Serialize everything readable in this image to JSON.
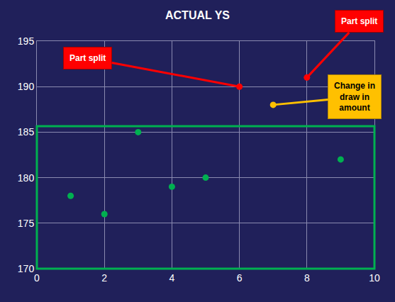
{
  "chart_data": {
    "type": "scatter",
    "title": "ACTUAL YS",
    "x": [
      1,
      2,
      3,
      4,
      5,
      6,
      7,
      8,
      9
    ],
    "values": [
      178,
      176,
      185,
      179,
      180,
      190,
      188,
      191,
      182
    ],
    "colors": [
      "#00b050",
      "#00b050",
      "#00b050",
      "#00b050",
      "#00b050",
      "#ff0000",
      "#ffc000",
      "#ff0000",
      "#00b050"
    ],
    "xlim": [
      0,
      10
    ],
    "xticks": [
      0,
      2,
      4,
      6,
      8,
      10
    ],
    "ylim": [
      170,
      195
    ],
    "yticks": [
      170,
      175,
      180,
      185,
      190,
      195
    ],
    "grid": true,
    "marker": "circle",
    "annotations": [
      {
        "text": "Part split",
        "x": 6,
        "y": 190
      },
      {
        "text": "Part split",
        "x": 8,
        "y": 191
      },
      {
        "text": "Change in draw in amount",
        "x": 7,
        "y": 188
      }
    ]
  }
}
